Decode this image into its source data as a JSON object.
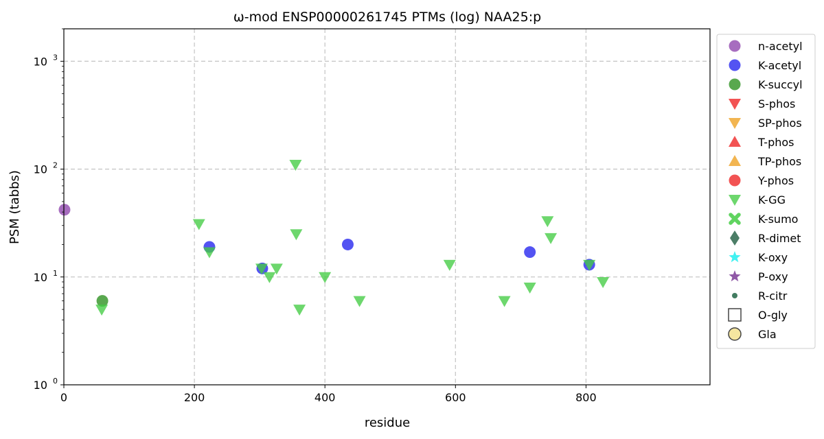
{
  "chart_data": {
    "type": "scatter",
    "title": "ω-mod ENSP00000261745 PTMs (log) NAA25:p",
    "xlabel": "residue",
    "ylabel": "PSM (tabbs)",
    "xlim": [
      0,
      990
    ],
    "ylim": [
      1,
      2000
    ],
    "yscale": "log",
    "grid": true,
    "legend_position": "outside-right",
    "x_ticks": [
      0,
      200,
      400,
      600,
      800
    ],
    "y_ticks": [
      {
        "value": 1,
        "base": "10",
        "exp": "0"
      },
      {
        "value": 10,
        "base": "10",
        "exp": "1"
      },
      {
        "value": 100,
        "base": "10",
        "exp": "2"
      },
      {
        "value": 1000,
        "base": "10",
        "exp": "3"
      }
    ],
    "series": [
      {
        "name": "n-acetyl",
        "marker": "circle",
        "color": "#8e44ad",
        "points": [
          [
            1,
            42
          ]
        ]
      },
      {
        "name": "K-acetyl",
        "marker": "circle",
        "color": "#2323ee",
        "points": [
          [
            223,
            19
          ],
          [
            304,
            12
          ],
          [
            435,
            20
          ],
          [
            714,
            17
          ],
          [
            805,
            13
          ]
        ]
      },
      {
        "name": "K-succyl",
        "marker": "circle",
        "color": "#2a8f1e",
        "points": [
          [
            59,
            6
          ]
        ]
      },
      {
        "name": "S-phos",
        "marker": "triangle-down",
        "color": "#ee2222",
        "points": []
      },
      {
        "name": "SP-phos",
        "marker": "triangle-down",
        "color": "#eea020",
        "points": []
      },
      {
        "name": "T-phos",
        "marker": "triangle-up",
        "color": "#ee2222",
        "points": []
      },
      {
        "name": "TP-phos",
        "marker": "triangle-up",
        "color": "#eea020",
        "points": []
      },
      {
        "name": "Y-phos",
        "marker": "circle",
        "color": "#ee2222",
        "points": []
      },
      {
        "name": "K-GG",
        "marker": "triangle-down",
        "color": "#44cc44",
        "points": [
          [
            58,
            5
          ],
          [
            207,
            31
          ],
          [
            223,
            17
          ],
          [
            303,
            12
          ],
          [
            315,
            10
          ],
          [
            326,
            12
          ],
          [
            355,
            110
          ],
          [
            356,
            25
          ],
          [
            361,
            5
          ],
          [
            400,
            10
          ],
          [
            453,
            6
          ],
          [
            591,
            13
          ],
          [
            675,
            6
          ],
          [
            714,
            8
          ],
          [
            741,
            33
          ],
          [
            746,
            23
          ],
          [
            805,
            13
          ],
          [
            826,
            9
          ]
        ]
      },
      {
        "name": "K-sumo",
        "marker": "x",
        "color": "#44cc44",
        "points": []
      },
      {
        "name": "R-dimet",
        "marker": "diamond",
        "color": "#1a5a3c",
        "points": []
      },
      {
        "name": "K-oxy",
        "marker": "star",
        "color": "#22eeee",
        "points": []
      },
      {
        "name": "P-oxy",
        "marker": "star",
        "color": "#7d3c98",
        "points": []
      },
      {
        "name": "R-citr",
        "marker": "small-circle",
        "color": "#2e6e50",
        "points": []
      },
      {
        "name": "O-gly",
        "marker": "square-open",
        "color": "#444444",
        "points": []
      },
      {
        "name": "Gla",
        "marker": "circle-open",
        "color": "#444444",
        "points": []
      }
    ]
  }
}
